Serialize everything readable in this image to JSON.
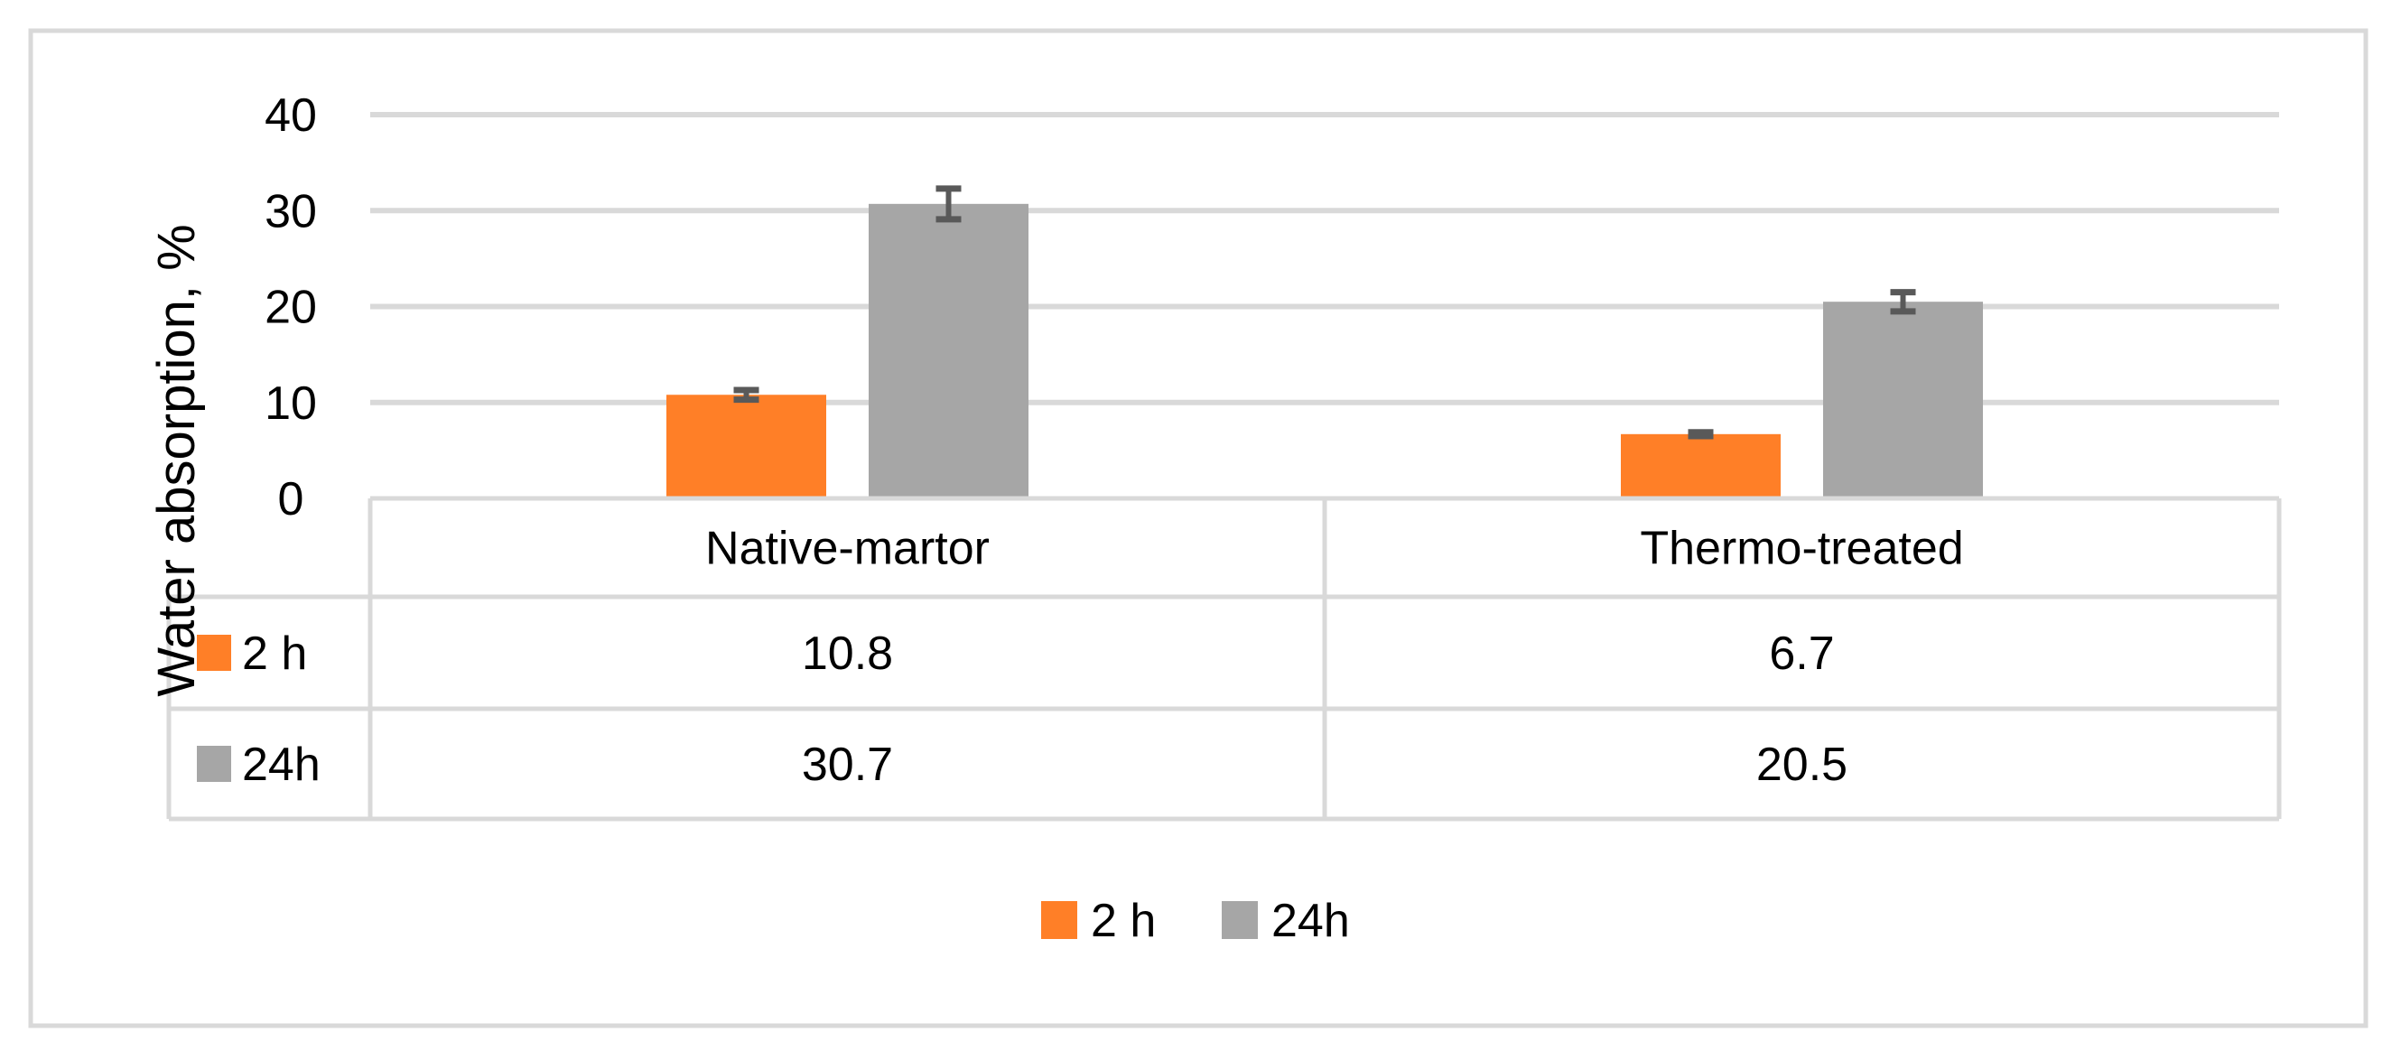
{
  "chart_data": {
    "type": "bar",
    "title": "",
    "xlabel": "",
    "ylabel": "Water absorption, %",
    "ylim": [
      0,
      40
    ],
    "yticks": [
      "0",
      "10",
      "20",
      "30",
      "40"
    ],
    "grid": true,
    "legend_placement": "bottom",
    "categories": [
      "Native-martor",
      "Thermo-treated"
    ],
    "series": [
      {
        "name": "2 h",
        "values": [
          10.8,
          6.7
        ],
        "value_labels": [
          "10.8",
          "6.7"
        ],
        "errors": [
          0.5,
          0.2
        ],
        "color": "#FF7F27"
      },
      {
        "name": "24h",
        "values": [
          30.7,
          20.5
        ],
        "value_labels": [
          "30.7",
          "20.5"
        ],
        "errors": [
          1.6,
          1.0
        ],
        "color": "#A6A6A6"
      }
    ],
    "data_table": true
  }
}
